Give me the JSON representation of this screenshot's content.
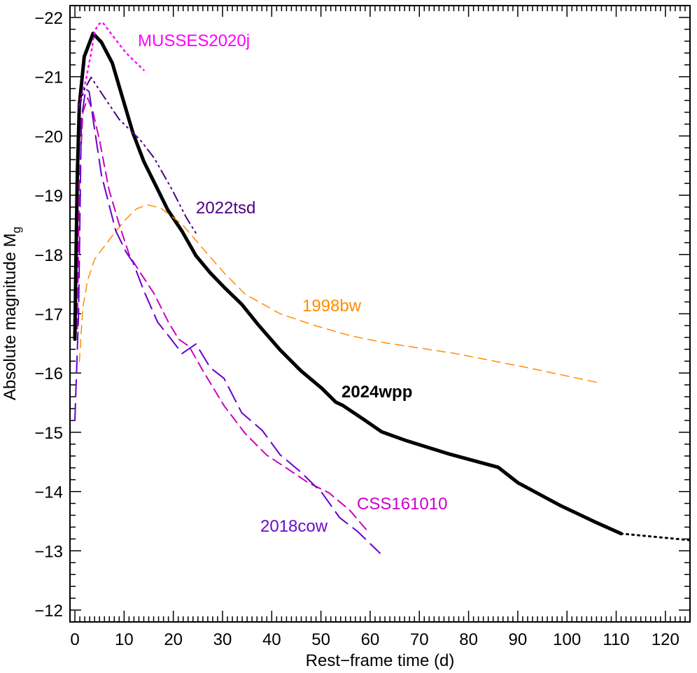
{
  "chart_data": {
    "type": "line",
    "title": "",
    "xlabel": "Rest−frame time (d)",
    "ylabel": "Absolute magnitude M",
    "ylabel_subscript": "g",
    "xlim": [
      -1,
      125
    ],
    "ylim": [
      -11.8,
      -22.2
    ],
    "y_inverted": true,
    "grid": false,
    "legend": "inline labels",
    "x_ticks": [
      0,
      10,
      20,
      30,
      40,
      50,
      60,
      70,
      80,
      90,
      100,
      110,
      120
    ],
    "x_tick_labels": [
      "0",
      "10",
      "20",
      "30",
      "40",
      "50",
      "60",
      "70",
      "80",
      "90",
      "100",
      "110",
      "120"
    ],
    "y_ticks": [
      -12,
      -13,
      -14,
      -15,
      -16,
      -17,
      -18,
      -19,
      -20,
      -21,
      -22
    ],
    "y_tick_labels": [
      "−12",
      "−13",
      "−14",
      "−15",
      "−16",
      "−17",
      "−18",
      "−19",
      "−20",
      "−21",
      "−22"
    ],
    "series": [
      {
        "name": "2024wpp",
        "color": "#000000",
        "style": "solid-thick",
        "x": [
          0,
          0.2,
          0.5,
          0.9,
          1.9,
          3.7,
          5.4,
          7.6,
          9.7,
          11.8,
          14.0,
          16.1,
          18.9,
          21.8,
          24.6,
          27.5,
          30.3,
          33.9,
          37.4,
          41.7,
          45.9,
          50.2,
          53.0,
          54.5,
          58.8,
          62.3,
          67.3,
          75.8,
          86.0,
          90.0,
          98.5,
          105.6,
          111.0
        ],
        "y": [
          -16.57,
          -17.8,
          -19.34,
          -20.52,
          -21.34,
          -21.73,
          -21.58,
          -21.23,
          -20.64,
          -20.05,
          -19.57,
          -19.22,
          -18.75,
          -18.39,
          -17.98,
          -17.69,
          -17.45,
          -17.16,
          -16.8,
          -16.39,
          -16.04,
          -15.74,
          -15.51,
          -15.45,
          -15.21,
          -15.01,
          -14.86,
          -14.64,
          -14.41,
          -14.15,
          -13.77,
          -13.49,
          -13.29
        ]
      },
      {
        "name": "2024wpp extrapolation",
        "color": "#000000",
        "style": "dotted-thick",
        "x": [
          111.0,
          125.0
        ],
        "y": [
          -13.29,
          -13.18
        ]
      },
      {
        "name": "MUSSES2020j",
        "color": "#ff00ff",
        "style": "dotted",
        "x": [
          0.9,
          2.2,
          3.3,
          4.0,
          4.7,
          5.6,
          7.6,
          10.4,
          14.0
        ],
        "y": [
          -20.52,
          -20.93,
          -21.4,
          -21.76,
          -21.88,
          -21.92,
          -21.7,
          -21.4,
          -21.11
        ]
      },
      {
        "name": "2022tsd",
        "color": "#4b0082",
        "style": "dash-dot-dot",
        "x": [
          0.75,
          1.9,
          3.3,
          4.7,
          9.0,
          13.3,
          16.1,
          19.7,
          22.6,
          24.6
        ],
        "y": [
          -20.46,
          -20.78,
          -20.99,
          -20.81,
          -20.28,
          -19.93,
          -19.63,
          -19.1,
          -18.63,
          -18.36
        ]
      },
      {
        "name": "1998bw",
        "color": "#ff8c00",
        "style": "dashed-thin",
        "x": [
          0.9,
          1.6,
          2.6,
          4.0,
          6.2,
          8.3,
          10.4,
          12.5,
          14.7,
          17.5,
          21.8,
          26.0,
          30.3,
          34.6,
          41.7,
          48.8,
          55.9,
          63.0,
          77.3,
          91.4,
          106.8
        ],
        "y": [
          -16.19,
          -17.1,
          -17.57,
          -17.92,
          -18.16,
          -18.39,
          -18.6,
          -18.77,
          -18.84,
          -18.78,
          -18.51,
          -18.1,
          -17.69,
          -17.33,
          -17.0,
          -16.8,
          -16.63,
          -16.51,
          -16.33,
          -16.1,
          -15.83
        ]
      },
      {
        "name": "CSS161010",
        "color": "#cc00bb",
        "style": "dashed",
        "x": [
          0.5,
          0.9,
          1.6,
          2.6,
          3.7,
          5.0,
          6.9,
          9.0,
          11.1,
          13.3,
          16.1,
          19.0,
          21.1,
          23.2,
          26.0,
          30.3,
          34.6,
          38.9,
          43.1,
          47.4,
          51.6,
          55.9,
          59.5
        ],
        "y": [
          -16.75,
          -19.22,
          -20.4,
          -20.64,
          -20.4,
          -19.93,
          -19.1,
          -18.51,
          -17.98,
          -17.69,
          -17.34,
          -16.86,
          -16.57,
          -16.45,
          -16.04,
          -15.45,
          -14.98,
          -14.62,
          -14.39,
          -14.15,
          -13.98,
          -13.68,
          -13.33
        ]
      },
      {
        "name": "2018cow",
        "color": "#6600cc",
        "style": "long-dashed",
        "x": [
          0,
          0.75,
          1.3,
          2.2,
          2.9,
          3.7,
          5.4,
          8.3,
          10.4,
          11.8,
          14.0,
          16.8,
          19.0,
          21.8,
          24.6,
          27.5,
          30.3,
          33.9,
          38.1,
          41.7,
          45.9,
          50.2,
          53.8,
          57.4,
          62.0
        ],
        "y": [
          -15.2,
          -17.02,
          -20.28,
          -20.79,
          -20.75,
          -20.28,
          -19.34,
          -18.4,
          -18.04,
          -17.87,
          -17.39,
          -16.86,
          -16.63,
          -16.33,
          -16.49,
          -16.09,
          -15.91,
          -15.33,
          -15.03,
          -14.62,
          -14.33,
          -13.98,
          -13.56,
          -13.33,
          -12.96
        ]
      }
    ],
    "labels": [
      {
        "text": "MUSSES2020j",
        "color": "#ff00ff",
        "bold": false
      },
      {
        "text": "2022tsd",
        "color": "#4b0082",
        "bold": false
      },
      {
        "text": "1998bw",
        "color": "#ff8c00",
        "bold": false
      },
      {
        "text": "2024wpp",
        "color": "#000000",
        "bold": true
      },
      {
        "text": "CSS161010",
        "color": "#cc00cc",
        "bold": false
      },
      {
        "text": "2018cow",
        "color": "#6a0dcc",
        "bold": false
      }
    ]
  }
}
